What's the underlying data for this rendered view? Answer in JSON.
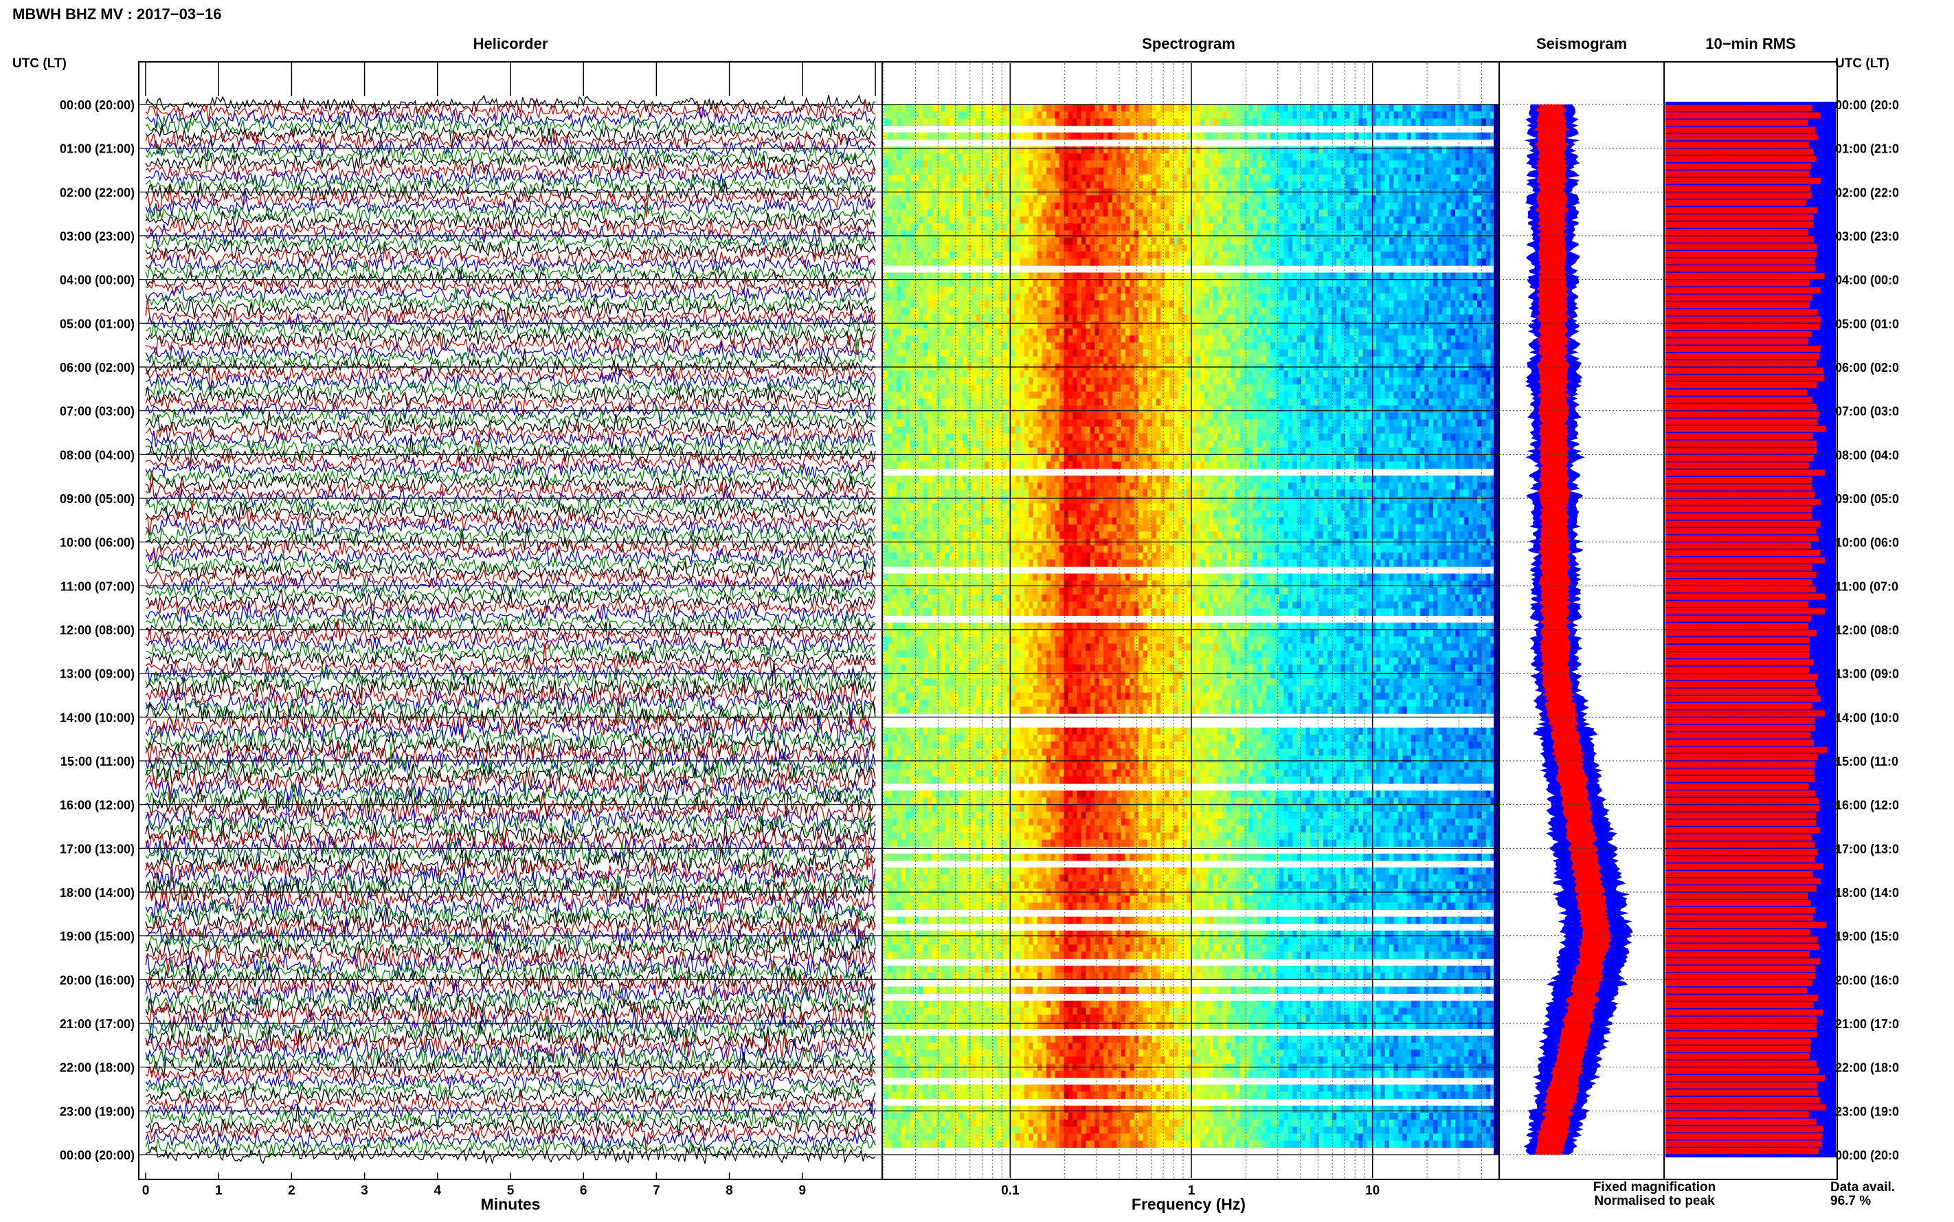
{
  "header": {
    "station_title": "MBWH BHZ MV : 2017−03−16"
  },
  "time_axis": {
    "label_left": "UTC (LT)",
    "label_right": "UTC (LT)",
    "hour_labels": [
      "00:00 (20:00)",
      "01:00 (21:00)",
      "02:00 (22:00)",
      "03:00 (23:00)",
      "04:00 (00:00)",
      "05:00 (01:00)",
      "06:00 (02:00)",
      "07:00 (03:00)",
      "08:00 (04:00)",
      "09:00 (05:00)",
      "10:00 (06:00)",
      "11:00 (07:00)",
      "12:00 (08:00)",
      "13:00 (09:00)",
      "14:00 (10:00)",
      "15:00 (11:00)",
      "16:00 (12:00)",
      "17:00 (13:00)",
      "18:00 (14:00)",
      "19:00 (15:00)",
      "20:00 (16:00)",
      "21:00 (17:00)",
      "22:00 (18:00)",
      "23:00 (19:00)",
      "00:00 (20:00)"
    ],
    "hour_labels_right": [
      "00:00 (20:0",
      "01:00 (21:0",
      "02:00 (22:0",
      "03:00 (23:0",
      "04:00 (00:0",
      "05:00 (01:0",
      "06:00 (02:0",
      "07:00 (03:0",
      "08:00 (04:0",
      "09:00 (05:0",
      "10:00 (06:0",
      "11:00 (07:0",
      "12:00 (08:0",
      "13:00 (09:0",
      "14:00 (10:0",
      "15:00 (11:0",
      "16:00 (12:0",
      "17:00 (13:0",
      "18:00 (14:0",
      "19:00 (15:0",
      "20:00 (16:0",
      "21:00 (17:0",
      "22:00 (18:0",
      "23:00 (19:0",
      "00:00 (20:0"
    ]
  },
  "chart_data": [
    {
      "type": "line",
      "title": "Helicorder",
      "xlabel": "Minutes",
      "ylabel": "UTC (LT)",
      "xlim": [
        0,
        10
      ],
      "x_ticks": [
        "0",
        "1",
        "2",
        "3",
        "4",
        "5",
        "6",
        "7",
        "8",
        "9"
      ],
      "trace_colors": [
        "#000000",
        "#cc0000",
        "#0000cc",
        "#008800"
      ],
      "traces_per_hour": 6,
      "hours": 24
    },
    {
      "type": "heatmap",
      "title": "Spectrogram",
      "xlabel": "Frequency (Hz)",
      "x_scale": "log",
      "xlim": [
        0.02,
        50
      ],
      "x_ticks": [
        "0.1",
        "1",
        "10"
      ],
      "colormap": "jet",
      "peak_band_hz": [
        0.15,
        0.5
      ]
    },
    {
      "type": "area",
      "title": "Seismogram",
      "series": [
        {
          "name": "Fixed magnification",
          "color": "#0000ff"
        },
        {
          "name": "Normalised to peak",
          "color": "#ff0000"
        }
      ],
      "amplitude_peak_hour_utc": 19
    },
    {
      "type": "bar",
      "title": "10−min RMS",
      "bars_per_hour": 6,
      "bar_color": "#ff0000",
      "background_color": "#0000ff"
    }
  ],
  "footer": {
    "legend_fixed": "Fixed magnification",
    "legend_normalised": "Normalised to peak",
    "data_avail_label": "Data avail.",
    "data_avail_value": "96.7 %"
  },
  "colors": {
    "legend_fixed": "#0000ff",
    "legend_normalised": "#ff0000"
  }
}
